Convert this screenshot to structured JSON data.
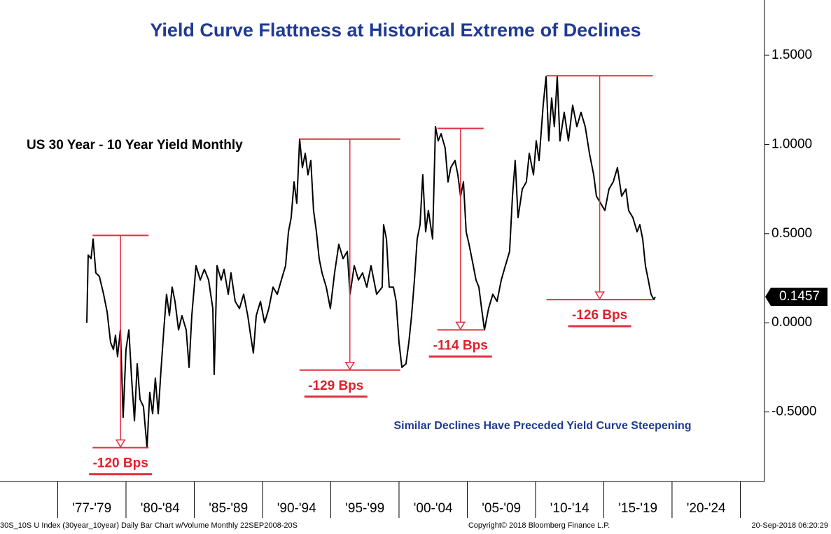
{
  "chart_data": {
    "type": "line",
    "title": "Yield Curve Flattness at Historical Extreme of Declines",
    "subtitle": "US 30 Year - 10 Year Yield Monthly",
    "note": "Similar Declines Have Preceded Yield Curve Steepening",
    "footer_left": "30S_10S U Index (30year_10year) Daily Bar Chart w/Volume  Monthly 22SEP2008-20S",
    "footer_center": "Copyright© 2018 Bloomberg Finance L.P.",
    "footer_right": "20-Sep-2018 06:20:29",
    "xlim": [
      1970.77,
      2026.67
    ],
    "xticks": [
      1975,
      1980,
      1985,
      1990,
      1995,
      2000,
      2005,
      2010,
      2015,
      2020,
      2025
    ],
    "categories": [
      "'77-'79",
      "'80-'84",
      "'85-'89",
      "'90-'94",
      "'95-'99",
      "'00-'04",
      "'05-'09",
      "'10-'14",
      "'15-'19",
      "'20-'24"
    ],
    "ylim": [
      -0.89,
      1.81
    ],
    "yticks": [
      {
        "value": -0.5,
        "label": "-0.5000"
      },
      {
        "value": 0,
        "label": "0.0000"
      },
      {
        "value": 0.5,
        "label": "0.5000"
      },
      {
        "value": 1,
        "label": "1.0000"
      },
      {
        "value": 1.5,
        "label": "1.5000"
      }
    ],
    "last_value": 0.1457,
    "series": [
      {
        "color": "#000000",
        "x": [
          1977.13,
          1977.23,
          1977.44,
          1977.59,
          1977.79,
          1978.05,
          1978.36,
          1978.62,
          1978.87,
          1979.08,
          1979.23,
          1979.38,
          1979.59,
          1979.79,
          1980.0,
          1980.21,
          1980.41,
          1980.62,
          1980.82,
          1981.03,
          1981.28,
          1981.54,
          1981.74,
          1981.95,
          1982.15,
          1982.36,
          1982.56,
          1982.77,
          1982.97,
          1983.18,
          1983.38,
          1983.59,
          1983.85,
          1984.1,
          1984.41,
          1984.62,
          1984.82,
          1985.13,
          1985.44,
          1985.74,
          1986.05,
          1986.36,
          1986.46,
          1986.67,
          1986.97,
          1987.18,
          1987.49,
          1987.69,
          1988.0,
          1988.31,
          1988.62,
          1988.92,
          1989.13,
          1989.33,
          1989.54,
          1989.85,
          1990.15,
          1990.46,
          1990.77,
          1991.08,
          1991.38,
          1991.69,
          1991.9,
          1992.1,
          1992.31,
          1992.51,
          1992.72,
          1992.92,
          1993.13,
          1993.33,
          1993.54,
          1993.74,
          1993.95,
          1994.15,
          1994.36,
          1994.67,
          1994.97,
          1995.28,
          1995.59,
          1995.9,
          1996.21,
          1996.41,
          1996.72,
          1997.03,
          1997.33,
          1997.64,
          1997.95,
          1998.36,
          1998.77,
          1998.87,
          1999.08,
          1999.28,
          1999.59,
          1999.79,
          2000.0,
          2000.21,
          2000.51,
          2000.72,
          2000.92,
          2001.13,
          2001.33,
          2001.54,
          2001.74,
          2001.95,
          2002.15,
          2002.46,
          2002.67,
          2002.87,
          2003.08,
          2003.38,
          2003.59,
          2003.79,
          2004.1,
          2004.31,
          2004.51,
          2004.72,
          2004.92,
          2005.13,
          2005.44,
          2005.64,
          2005.85,
          2006.05,
          2006.26,
          2006.56,
          2006.87,
          2007.18,
          2007.49,
          2007.79,
          2008.1,
          2008.31,
          2008.51,
          2008.72,
          2009.03,
          2009.33,
          2009.54,
          2009.85,
          2010.05,
          2010.26,
          2010.56,
          2010.77,
          2010.97,
          2011.18,
          2011.38,
          2011.59,
          2011.79,
          2012.1,
          2012.41,
          2012.72,
          2013.03,
          2013.33,
          2013.64,
          2013.95,
          2014.26,
          2014.46,
          2014.77,
          2015.08,
          2015.38,
          2015.69,
          2016.0,
          2016.31,
          2016.62,
          2016.82,
          2017.13,
          2017.44,
          2017.64,
          2017.85,
          2018.05,
          2018.26,
          2018.46,
          2018.67,
          2018.77
        ],
        "values": [
          0.0,
          0.38,
          0.36,
          0.47,
          0.28,
          0.26,
          0.16,
          0.06,
          -0.11,
          -0.15,
          -0.07,
          -0.19,
          -0.04,
          -0.53,
          -0.15,
          -0.04,
          -0.31,
          -0.55,
          -0.23,
          -0.43,
          -0.47,
          -0.7,
          -0.39,
          -0.51,
          -0.31,
          -0.51,
          -0.27,
          -0.04,
          0.16,
          0.04,
          0.2,
          0.12,
          -0.04,
          0.04,
          -0.04,
          -0.25,
          0.04,
          0.32,
          0.24,
          0.3,
          0.24,
          0.08,
          -0.29,
          0.32,
          0.24,
          0.3,
          0.16,
          0.28,
          0.12,
          0.08,
          0.16,
          0.04,
          -0.07,
          -0.17,
          0.04,
          0.12,
          0.0,
          0.08,
          0.2,
          0.16,
          0.24,
          0.32,
          0.51,
          0.59,
          0.79,
          0.67,
          1.03,
          0.87,
          0.95,
          0.83,
          0.91,
          0.63,
          0.51,
          0.36,
          0.28,
          0.2,
          0.08,
          0.28,
          0.44,
          0.36,
          0.4,
          0.16,
          0.32,
          0.24,
          0.28,
          0.2,
          0.32,
          0.16,
          0.2,
          0.55,
          0.47,
          0.2,
          0.2,
          0.12,
          -0.11,
          -0.25,
          -0.23,
          -0.11,
          0.04,
          0.24,
          0.47,
          0.55,
          0.83,
          0.51,
          0.63,
          0.47,
          1.1,
          1.02,
          1.06,
          0.98,
          0.79,
          0.87,
          0.91,
          0.83,
          0.71,
          0.79,
          0.51,
          0.44,
          0.32,
          0.24,
          0.2,
          0.08,
          -0.04,
          0.08,
          0.16,
          0.12,
          0.24,
          0.32,
          0.4,
          0.71,
          0.91,
          0.59,
          0.75,
          0.79,
          0.95,
          0.83,
          1.02,
          0.91,
          1.22,
          1.38,
          1.02,
          1.26,
          1.1,
          1.38,
          1.02,
          1.18,
          1.02,
          1.22,
          1.1,
          1.18,
          1.1,
          0.95,
          0.83,
          0.71,
          0.67,
          0.63,
          0.75,
          0.79,
          0.87,
          0.71,
          0.75,
          0.63,
          0.59,
          0.51,
          0.55,
          0.47,
          0.32,
          0.24,
          0.16,
          0.13,
          0.1457
        ]
      }
    ],
    "annotations": [
      {
        "label": "-120 Bps",
        "x": 1979.6,
        "high": 0.49,
        "low": -0.7
      },
      {
        "label": "-129 Bps",
        "x": 1996.4,
        "high": 1.03,
        "low": -0.265
      },
      {
        "label": "-114 Bps",
        "x": 2004.5,
        "high": 1.09,
        "low": -0.04
      },
      {
        "label": "-126 Bps",
        "x": 2014.7,
        "high": 1.385,
        "low": 0.13
      }
    ]
  }
}
